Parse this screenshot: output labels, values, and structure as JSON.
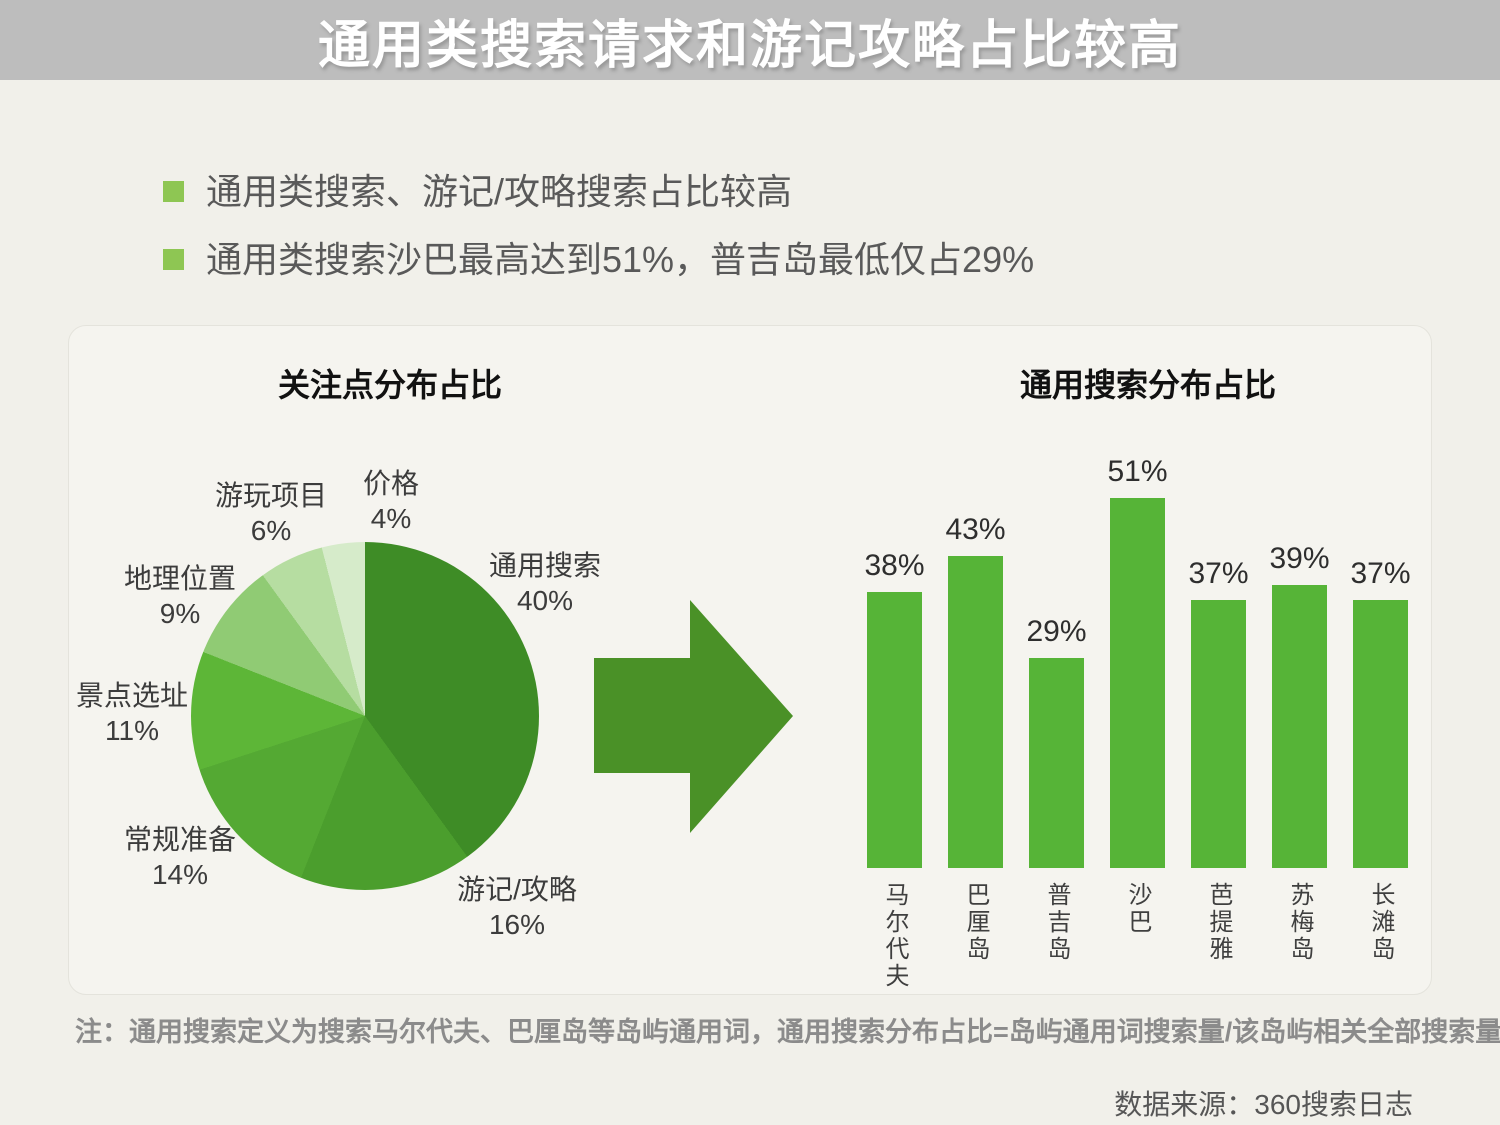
{
  "header": {
    "title": "通用类搜索请求和游记攻略占比较高",
    "bg_color": "#bdbdbd"
  },
  "bullets": [
    {
      "text": "通用类搜索、游记/攻略搜索占比较高"
    },
    {
      "text": "通用类搜索沙巴最高达到51%，普吉岛最低仅占29%"
    }
  ],
  "bullet_color": "#8ec653",
  "arrow_color": "#4a9127",
  "chart_data": [
    {
      "type": "pie",
      "title": "关注点分布占比",
      "direction": "clockwise",
      "start_angle_deg": 0,
      "slices": [
        {
          "label": "通用搜索",
          "value": 40,
          "display": "40%",
          "color": "#3e8c26"
        },
        {
          "label": "游记/攻略",
          "value": 16,
          "display": "16%",
          "color": "#4b9e2d"
        },
        {
          "label": "常规准备",
          "value": 14,
          "display": "14%",
          "color": "#54a933"
        },
        {
          "label": "景点选址",
          "value": 11,
          "display": "11%",
          "color": "#5db637"
        },
        {
          "label": "地理位置",
          "value": 9,
          "display": "9%",
          "color": "#90cb74"
        },
        {
          "label": "游玩项目",
          "value": 6,
          "display": "6%",
          "color": "#b6dda1"
        },
        {
          "label": "价格",
          "value": 4,
          "display": "4%",
          "color": "#d6ebca"
        }
      ]
    },
    {
      "type": "bar",
      "title": "通用搜索分布占比",
      "categories": [
        "马尔代夫",
        "巴厘岛",
        "普吉岛",
        "沙巴",
        "芭提雅",
        "苏梅岛",
        "长滩岛"
      ],
      "values": [
        38,
        43,
        29,
        51,
        37,
        39,
        37
      ],
      "value_labels": [
        "38%",
        "43%",
        "29%",
        "51%",
        "37%",
        "39%",
        "37%"
      ],
      "bar_color": "#56b437",
      "ylim": [
        0,
        55
      ],
      "grid": false,
      "legend": "none",
      "value_label_position": "above"
    }
  ],
  "note": "注：通用搜索定义为搜索马尔代夫、巴厘岛等岛屿通用词，通用搜索分布占比=岛屿通用词搜索量/该岛屿相关全部搜索量",
  "source": "数据来源：360搜索日志"
}
